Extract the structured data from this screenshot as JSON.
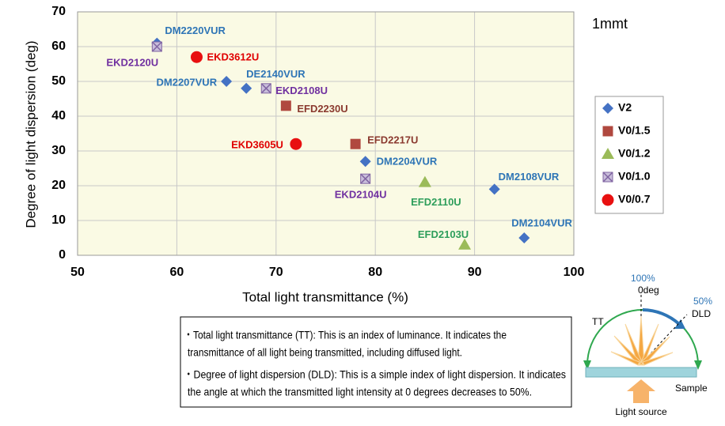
{
  "chart_data": {
    "type": "scatter",
    "xlabel": "Total light transmittance (%)",
    "ylabel": "Degree of light dispersion (deg)",
    "annotation": "1mmt",
    "xlim": [
      50,
      100
    ],
    "xticks": [
      50,
      60,
      70,
      80,
      90,
      100
    ],
    "ylim": [
      0,
      70
    ],
    "yticks": [
      0,
      10,
      20,
      30,
      40,
      50,
      60,
      70
    ],
    "grid": true,
    "legend": "right",
    "series": [
      {
        "name": "V2",
        "marker": "diamond",
        "color": "#4472c4",
        "label_color": "#2e75b6",
        "labels": [
          "DM2220VUR",
          "DM2207VUR",
          "DE2140VUR",
          "DM2204VUR",
          "DM2108VUR",
          "DM2104VUR"
        ],
        "x": [
          58,
          65,
          67,
          79,
          92,
          95
        ],
        "y": [
          61,
          50,
          48,
          27,
          19,
          5
        ]
      },
      {
        "name": "V0/1.5",
        "marker": "square",
        "color": "#b0483f",
        "label_color": "#8b3a2f",
        "labels": [
          "EFD2230U",
          "EFD2217U"
        ],
        "x": [
          71,
          78
        ],
        "y": [
          43,
          32
        ]
      },
      {
        "name": "V0/1.2",
        "marker": "triangle",
        "color": "#9bbb59",
        "label_color": "#2e9e5b",
        "labels": [
          "EFD2110U",
          "EFD2103U"
        ],
        "x": [
          85,
          89
        ],
        "y": [
          21,
          3
        ]
      },
      {
        "name": "V0/1.0",
        "marker": "xbox",
        "color": "#8064a2",
        "label_color": "#7030a0",
        "labels": [
          "EKD2120U",
          "EKD2108U",
          "EKD2104U"
        ],
        "x": [
          58,
          69,
          79
        ],
        "y": [
          60,
          48,
          22
        ]
      },
      {
        "name": "V0/0.7",
        "marker": "circle",
        "color": "#e81010",
        "label_color": "#e00000",
        "labels": [
          "EKD3612U",
          "EKD3605U"
        ],
        "x": [
          62,
          72
        ],
        "y": [
          57,
          32
        ]
      }
    ]
  },
  "notes": {
    "lines": [
      "・Total light transmittance (TT): This is an index of luminance. It indicates the",
      "transmittance of all light being transmitted, including diffused light.",
      "・Degree of light dispersion (DLD): This is a simple index of light dispersion. It indicates",
      "the angle at which the transmitted light intensity at 0 degrees decreases to 50%."
    ]
  },
  "diagram": {
    "top_percent": "100%",
    "top_angle": "0deg",
    "half_percent": "50%",
    "half_label": "DLD",
    "tt_label": "TT",
    "sample": "Sample",
    "source": "Light source"
  }
}
